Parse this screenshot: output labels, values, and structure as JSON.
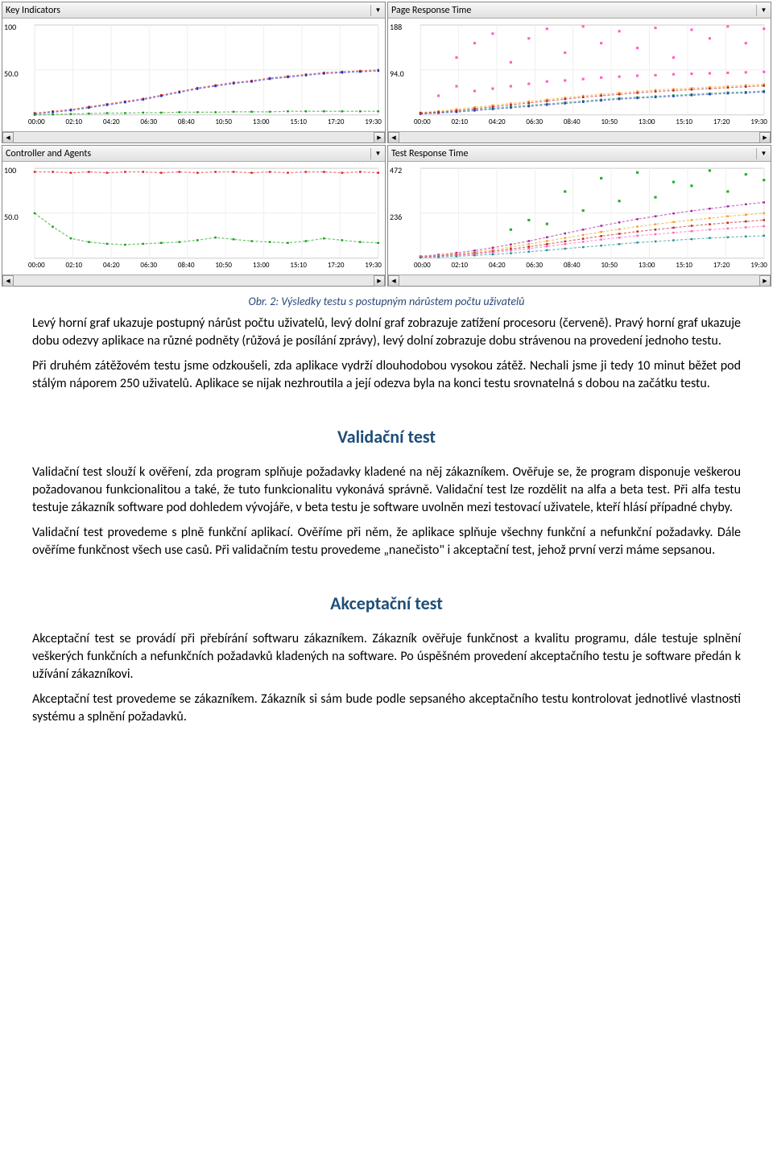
{
  "charts": {
    "time_labels": [
      "00:00",
      "02:10",
      "04:20",
      "06:30",
      "08:40",
      "10:50",
      "13:00",
      "15:10",
      "17:20",
      "19:30"
    ],
    "key_indicators": {
      "title": "Key Indicators",
      "ymax_label": "100",
      "ymid_label": "50.0",
      "ymax": 100,
      "series": [
        {
          "color": "#e02020",
          "points": [
            2,
            4,
            6,
            9,
            12,
            15,
            18,
            22,
            26,
            30,
            33,
            36,
            38,
            41,
            43,
            45,
            47,
            48,
            49,
            50
          ]
        },
        {
          "color": "#1030d0",
          "points": [
            1,
            3,
            5,
            8,
            11,
            14,
            17,
            21,
            25,
            29,
            32,
            35,
            37,
            40,
            42,
            44,
            46,
            47,
            48,
            49
          ]
        },
        {
          "color": "#10a010",
          "points": [
            0,
            0.5,
            1,
            1.5,
            2,
            2,
            2.5,
            2.5,
            3,
            3,
            3,
            3.5,
            3.5,
            3.5,
            4,
            4,
            4,
            4,
            4,
            4
          ]
        }
      ]
    },
    "page_response": {
      "title": "Page Response Time",
      "ymax_label": "188",
      "ymid_label": "94.0",
      "ymax": 188,
      "scatter": {
        "color": "#ff60c0",
        "points": [
          [
            1,
            40
          ],
          [
            2,
            60
          ],
          [
            2,
            120
          ],
          [
            3,
            50
          ],
          [
            3,
            150
          ],
          [
            4,
            55
          ],
          [
            4,
            170
          ],
          [
            5,
            60
          ],
          [
            5,
            110
          ],
          [
            6,
            65
          ],
          [
            6,
            160
          ],
          [
            7,
            70
          ],
          [
            7,
            180
          ],
          [
            8,
            72
          ],
          [
            8,
            130
          ],
          [
            9,
            75
          ],
          [
            9,
            185
          ],
          [
            10,
            78
          ],
          [
            10,
            150
          ],
          [
            11,
            80
          ],
          [
            11,
            175
          ],
          [
            12,
            82
          ],
          [
            12,
            140
          ],
          [
            13,
            83
          ],
          [
            13,
            182
          ],
          [
            14,
            85
          ],
          [
            14,
            120
          ],
          [
            15,
            86
          ],
          [
            15,
            178
          ],
          [
            16,
            87
          ],
          [
            16,
            160
          ],
          [
            17,
            88
          ],
          [
            17,
            185
          ],
          [
            18,
            89
          ],
          [
            18,
            150
          ],
          [
            19,
            90
          ],
          [
            19,
            180
          ]
        ]
      },
      "series": [
        {
          "color": "#f0a020",
          "points": [
            5,
            8,
            12,
            16,
            20,
            24,
            28,
            32,
            36,
            40,
            43,
            46,
            49,
            52,
            54,
            56,
            58,
            60,
            62,
            64
          ]
        },
        {
          "color": "#209060",
          "points": [
            3,
            5,
            8,
            11,
            14,
            17,
            20,
            23,
            26,
            29,
            32,
            35,
            37,
            39,
            41,
            43,
            45,
            47,
            48,
            50
          ]
        },
        {
          "color": "#2040c0",
          "points": [
            2,
            4,
            6,
            9,
            12,
            15,
            18,
            21,
            24,
            27,
            30,
            33,
            35,
            37,
            39,
            41,
            43,
            45,
            46,
            48
          ]
        },
        {
          "color": "#c02020",
          "points": [
            4,
            6,
            9,
            13,
            17,
            21,
            25,
            29,
            33,
            37,
            40,
            43,
            46,
            49,
            51,
            53,
            55,
            57,
            59,
            61
          ]
        }
      ]
    },
    "controller": {
      "title": "Controller and Agents",
      "ymax_label": "100",
      "ymid_label": "50.0",
      "ymax": 100,
      "series": [
        {
          "color": "#e02020",
          "points": [
            96,
            96,
            95,
            96,
            95,
            96,
            96,
            95,
            96,
            95,
            96,
            96,
            95,
            96,
            95,
            96,
            96,
            95,
            96,
            95
          ]
        },
        {
          "color": "#10a010",
          "points": [
            50,
            35,
            22,
            18,
            16,
            15,
            16,
            17,
            18,
            20,
            23,
            21,
            19,
            18,
            17,
            19,
            22,
            20,
            18,
            17
          ]
        }
      ]
    },
    "test_response": {
      "title": "Test Response Time",
      "ymax_label": "472",
      "ymid_label": "236",
      "ymax": 472,
      "scatter": {
        "color": "#20b020",
        "points": [
          [
            5,
            150
          ],
          [
            6,
            200
          ],
          [
            7,
            180
          ],
          [
            8,
            350
          ],
          [
            9,
            250
          ],
          [
            10,
            420
          ],
          [
            11,
            300
          ],
          [
            12,
            450
          ],
          [
            13,
            320
          ],
          [
            14,
            400
          ],
          [
            15,
            380
          ],
          [
            16,
            460
          ],
          [
            17,
            350
          ],
          [
            18,
            440
          ],
          [
            19,
            410
          ]
        ]
      },
      "series": [
        {
          "color": "#a020a0",
          "points": [
            10,
            18,
            28,
            40,
            55,
            72,
            90,
            110,
            130,
            150,
            170,
            188,
            205,
            220,
            235,
            248,
            260,
            272,
            283,
            293
          ]
        },
        {
          "color": "#f0a020",
          "points": [
            8,
            14,
            22,
            32,
            44,
            58,
            74,
            90,
            106,
            122,
            138,
            152,
            166,
            178,
            190,
            200,
            210,
            220,
            228,
            236
          ]
        },
        {
          "color": "#c02020",
          "points": [
            6,
            12,
            18,
            26,
            36,
            48,
            60,
            74,
            88,
            102,
            116,
            128,
            140,
            150,
            160,
            170,
            178,
            186,
            193,
            200
          ]
        },
        {
          "color": "#ff60c0",
          "points": [
            5,
            10,
            15,
            22,
            30,
            40,
            50,
            62,
            74,
            86,
            98,
            108,
            118,
            126,
            134,
            142,
            150,
            156,
            162,
            168
          ]
        },
        {
          "color": "#209090",
          "points": [
            3,
            6,
            10,
            15,
            20,
            26,
            34,
            42,
            50,
            58,
            66,
            74,
            82,
            88,
            94,
            100,
            106,
            110,
            114,
            118
          ]
        }
      ]
    }
  },
  "caption": "Obr. 2: Výsledky testu s postupným nárůstem počtu uživatelů",
  "para1": "Levý horní graf ukazuje postupný nárůst počtu uživatelů, levý dolní graf zobrazuje zatížení procesoru (červeně). Pravý horní graf ukazuje dobu odezvy aplikace na různé podněty (růžová je posílání zprávy), levý dolní zobrazuje dobu strávenou na provedení jednoho testu.",
  "para2": "Při druhém zátěžovém testu jsme odzkoušeli, zda aplikace vydrží dlouhodobou vysokou zátěž. Nechali jsme ji tedy 10 minut běžet pod stálým náporem 250 uživatelů. Aplikace se nijak nezhroutila a její odezva byla na konci testu srovnatelná s dobou na začátku testu.",
  "heading1": "Validační test",
  "para3": "Validační test slouží k ověření, zda program splňuje požadavky kladené na něj zákazníkem. Ověřuje se, že program disponuje veškerou požadovanou funkcionalitou a také, že tuto funkcionalitu vykonává správně. Validační test lze rozdělit na alfa a beta test. Při alfa testu testuje zákazník software pod dohledem vývojáře, v beta testu je software uvolněn mezi testovací uživatele, kteří hlásí případné chyby.",
  "para4": "Validační test provedeme s plně funkční aplikací. Ověříme při něm, že aplikace splňuje všechny funkční a nefunkční požadavky. Dále ověříme funkčnost všech use casů. Při validačním testu provedeme „nanečisto\" i akceptační test, jehož první verzi máme sepsanou.",
  "heading2": "Akceptační test",
  "para5": "Akceptační test se provádí při přebírání softwaru zákazníkem. Zákazník ověřuje funkčnost a kvalitu programu, dále testuje splnění veškerých funkčních a nefunkčních požadavků kladených na software. Po úspěšném provedení akceptačního testu je software předán k užívání zákazníkovi.",
  "para6": "Akceptační test provedeme se zákazníkem. Zákazník si sám bude podle sepsaného akceptačního testu kontrolovat jednotlivé vlastnosti systému a splnění požadavků."
}
